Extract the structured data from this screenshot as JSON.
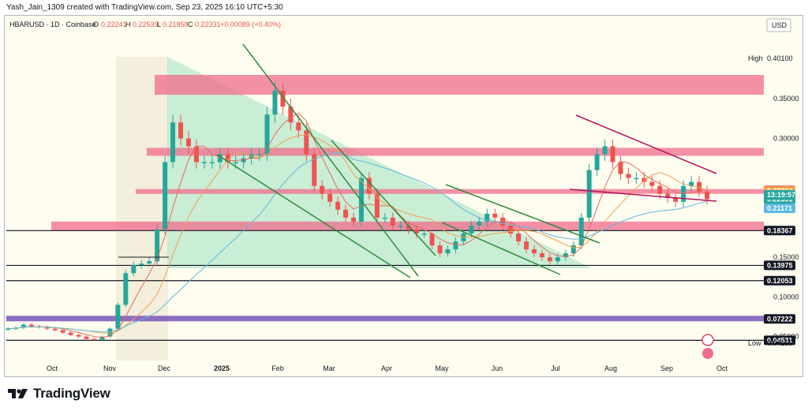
{
  "credit": "Yash_Jain_1309 created with TradingView.com, Sep 23, 2025 16:10 UTC+5:30",
  "brand": "TradingView",
  "legend": {
    "symbol": "HBARUSD · 1D · Coinbase",
    "open_key": "O",
    "open": "0.22241",
    "high_key": "H",
    "high": "0.22539",
    "low_key": "L",
    "low": "0.21858",
    "close_key": "C",
    "close": "0.22331",
    "change": "+0.00089 (+0.40%)"
  },
  "currency": "USD",
  "colors": {
    "up": "#26a69a",
    "down": "#ef5350",
    "zone": "#f06b8c",
    "triangle": "#9fe0c0",
    "wedge": "#b0125f",
    "trend": "#2e8b3c",
    "purple": "#6a3fb4"
  },
  "chart_data": {
    "type": "candlestick",
    "title": "",
    "x_ticks": [
      "Oct",
      "Nov",
      "Dec",
      "2025",
      "Feb",
      "Mar",
      "Apr",
      "May",
      "Jun",
      "Jul",
      "Aug",
      "Sep",
      "Oct"
    ],
    "y_ticks": [
      0.35,
      0.3,
      0.15,
      0.1,
      0.05
    ],
    "y_tick_labels": [
      "0.35000",
      "0.30000",
      "0.15000",
      "0.10000",
      "0.05000"
    ],
    "ylim": [
      0.0,
      0.43
    ],
    "close_series": [
      0.06,
      0.061,
      0.065,
      0.063,
      0.062,
      0.06,
      0.058,
      0.055,
      0.052,
      0.05,
      0.047,
      0.046,
      0.05,
      0.06,
      0.09,
      0.13,
      0.14,
      0.142,
      0.145,
      0.185,
      0.27,
      0.32,
      0.3,
      0.29,
      0.27,
      0.27,
      0.27,
      0.28,
      0.27,
      0.27,
      0.275,
      0.28,
      0.28,
      0.33,
      0.36,
      0.34,
      0.32,
      0.31,
      0.28,
      0.24,
      0.23,
      0.22,
      0.21,
      0.2,
      0.195,
      0.25,
      0.23,
      0.2,
      0.2,
      0.19,
      0.19,
      0.185,
      0.18,
      0.18,
      0.165,
      0.155,
      0.16,
      0.17,
      0.18,
      0.19,
      0.195,
      0.205,
      0.2,
      0.19,
      0.18,
      0.17,
      0.16,
      0.155,
      0.15,
      0.145,
      0.15,
      0.155,
      0.165,
      0.2,
      0.26,
      0.28,
      0.29,
      0.27,
      0.255,
      0.25,
      0.25,
      0.245,
      0.24,
      0.23,
      0.225,
      0.22,
      0.24,
      0.245,
      0.233,
      0.2233
    ],
    "horizontal_levels": [
      {
        "label": "High",
        "value": "0.40100",
        "price": 0.401,
        "kind": "high"
      },
      {
        "label": "",
        "value": "0.23428",
        "price": 0.23428,
        "kind": "red"
      },
      {
        "label": "",
        "value": "0.23362",
        "price": 0.23362,
        "kind": "orange"
      },
      {
        "label": "",
        "value": "0.22331",
        "price": 0.22331,
        "kind": "last"
      },
      {
        "label": "",
        "value": "13:19:57",
        "price": 0.2158,
        "kind": "countdown"
      },
      {
        "label": "",
        "value": "0.21171",
        "price": 0.21171,
        "kind": "ma"
      },
      {
        "label": "",
        "value": "0.18367",
        "price": 0.18367,
        "kind": "line"
      },
      {
        "label": "",
        "value": "0.13975",
        "price": 0.13975,
        "kind": "line"
      },
      {
        "label": "",
        "value": "0.12053",
        "price": 0.12053,
        "kind": "line"
      },
      {
        "label": "",
        "value": "0.07222",
        "price": 0.07222,
        "kind": "purple"
      },
      {
        "label": "",
        "value": "0.04531",
        "price": 0.04531,
        "kind": "line"
      },
      {
        "label": "Low",
        "value": "0.04155",
        "price": 0.04155,
        "kind": "low"
      }
    ],
    "zones": [
      {
        "low": 0.355,
        "high": 0.38
      },
      {
        "low": 0.278,
        "high": 0.288
      },
      {
        "low": 0.23,
        "high": 0.236
      },
      {
        "low": 0.18367,
        "high": 0.195
      }
    ],
    "grid": false,
    "legend_position": "top-left"
  }
}
